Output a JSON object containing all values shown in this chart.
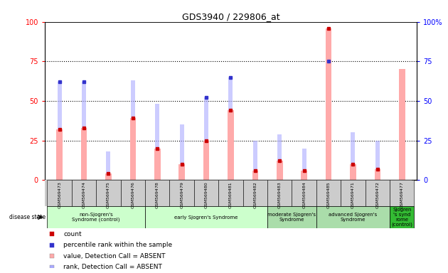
{
  "title": "GDS3940 / 229806_at",
  "samples": [
    "GSM569473",
    "GSM569474",
    "GSM569475",
    "GSM569476",
    "GSM569478",
    "GSM569479",
    "GSM569480",
    "GSM569481",
    "GSM569482",
    "GSM569483",
    "GSM569484",
    "GSM569485",
    "GSM569471",
    "GSM569472",
    "GSM569477"
  ],
  "count": [
    32,
    33,
    4,
    39,
    20,
    10,
    25,
    44,
    6,
    12,
    6,
    96,
    10,
    7,
    null
  ],
  "percentile_rank": [
    62,
    62,
    null,
    null,
    null,
    null,
    52,
    65,
    null,
    null,
    null,
    75,
    null,
    null,
    null
  ],
  "value_absent": [
    32,
    33,
    4,
    39,
    20,
    10,
    25,
    44,
    6,
    12,
    6,
    96,
    10,
    7,
    70
  ],
  "rank_absent": [
    62,
    62,
    18,
    63,
    48,
    35,
    52,
    65,
    25,
    29,
    20,
    75,
    30,
    25,
    70
  ],
  "groups": [
    {
      "label": "non-Sjogren's\nSyndrome (control)",
      "start": 0,
      "end": 3,
      "color": "#ccffcc"
    },
    {
      "label": "early Sjogren's Syndrome",
      "start": 4,
      "end": 8,
      "color": "#ccffcc"
    },
    {
      "label": "moderate Sjogren's\nSyndrome",
      "start": 9,
      "end": 10,
      "color": "#99ee99"
    },
    {
      "label": "advanced Sjogren's\nSyndrome",
      "start": 11,
      "end": 13,
      "color": "#99ee99"
    },
    {
      "label": "Sjogren\n's synd\nrome\n(control)",
      "start": 14,
      "end": 14,
      "color": "#44cc44"
    }
  ],
  "ylim": [
    0,
    100
  ],
  "yticks": [
    0,
    25,
    50,
    75,
    100
  ],
  "bar_width": 0.25,
  "value_absent_color": "#ffaaaa",
  "rank_absent_color": "#aaaaff",
  "count_dot_color": "#cc0000",
  "rank_dot_color": "#3333cc",
  "plot_bg": "#ffffff",
  "ticklabel_bg": "#cccccc",
  "group1_color": "#ccffcc",
  "group2_color": "#aaddaa",
  "group3_color": "#33bb33"
}
